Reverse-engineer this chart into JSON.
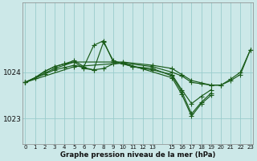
{
  "bg_color": "#cce8e8",
  "grid_color": "#99cccc",
  "line_color": "#1a5c1a",
  "xlabel": "Graphe pression niveau de la mer (hPa)",
  "yticks": [
    1023,
    1024
  ],
  "xlim": [
    -0.3,
    23.3
  ],
  "ylim": [
    1022.45,
    1025.35
  ],
  "series1": {
    "points": [
      [
        0,
        1023.78
      ],
      [
        1,
        1023.88
      ],
      [
        2,
        1024.02
      ],
      [
        3,
        1024.12
      ],
      [
        4,
        1024.18
      ],
      [
        5,
        1024.22
      ],
      [
        6,
        1024.08
      ],
      [
        7,
        1024.05
      ],
      [
        8,
        1024.65
      ],
      [
        9,
        1024.25
      ],
      [
        10,
        1024.18
      ],
      [
        11,
        1024.12
      ],
      [
        12,
        1024.1
      ],
      [
        13,
        1024.08
      ],
      [
        15,
        1023.92
      ],
      [
        16,
        1023.58
      ],
      [
        17,
        1023.1
      ],
      [
        18,
        1023.35
      ],
      [
        19,
        1023.55
      ]
    ]
  },
  "series2": {
    "points": [
      [
        0,
        1023.78
      ],
      [
        1,
        1023.88
      ],
      [
        2,
        1024.02
      ],
      [
        3,
        1024.12
      ],
      [
        4,
        1024.18
      ],
      [
        5,
        1024.25
      ],
      [
        6,
        1024.12
      ],
      [
        7,
        1024.58
      ],
      [
        8,
        1024.68
      ],
      [
        9,
        1024.22
      ],
      [
        10,
        1024.18
      ],
      [
        11,
        1024.12
      ],
      [
        12,
        1024.08
      ],
      [
        13,
        1024.05
      ],
      [
        15,
        1023.95
      ],
      [
        16,
        1023.62
      ],
      [
        17,
        1023.32
      ],
      [
        18,
        1023.48
      ],
      [
        19,
        1023.62
      ]
    ]
  },
  "series3": {
    "points": [
      [
        0,
        1023.78
      ],
      [
        2,
        1023.96
      ],
      [
        3,
        1024.05
      ],
      [
        4,
        1024.1
      ],
      [
        5,
        1024.15
      ],
      [
        6,
        1024.1
      ],
      [
        7,
        1024.05
      ],
      [
        8,
        1024.08
      ],
      [
        9,
        1024.18
      ],
      [
        10,
        1024.2
      ],
      [
        15,
        1023.88
      ],
      [
        16,
        1023.52
      ],
      [
        17,
        1023.05
      ],
      [
        18,
        1023.32
      ],
      [
        19,
        1023.5
      ]
    ]
  },
  "series4": {
    "points": [
      [
        0,
        1023.78
      ],
      [
        5,
        1024.12
      ],
      [
        10,
        1024.2
      ],
      [
        13,
        1024.12
      ],
      [
        15,
        1024.0
      ],
      [
        16,
        1023.92
      ],
      [
        17,
        1023.78
      ],
      [
        18,
        1023.75
      ],
      [
        19,
        1023.72
      ],
      [
        20,
        1023.72
      ],
      [
        21,
        1023.85
      ],
      [
        22,
        1024.0
      ],
      [
        23,
        1024.48
      ]
    ]
  },
  "series5": {
    "points": [
      [
        0,
        1023.78
      ],
      [
        3,
        1024.08
      ],
      [
        5,
        1024.22
      ],
      [
        9,
        1024.22
      ],
      [
        10,
        1024.22
      ],
      [
        13,
        1024.15
      ],
      [
        15,
        1024.08
      ],
      [
        16,
        1023.95
      ],
      [
        17,
        1023.82
      ],
      [
        19,
        1023.72
      ],
      [
        20,
        1023.72
      ],
      [
        21,
        1023.82
      ],
      [
        22,
        1023.95
      ],
      [
        23,
        1024.48
      ]
    ]
  }
}
